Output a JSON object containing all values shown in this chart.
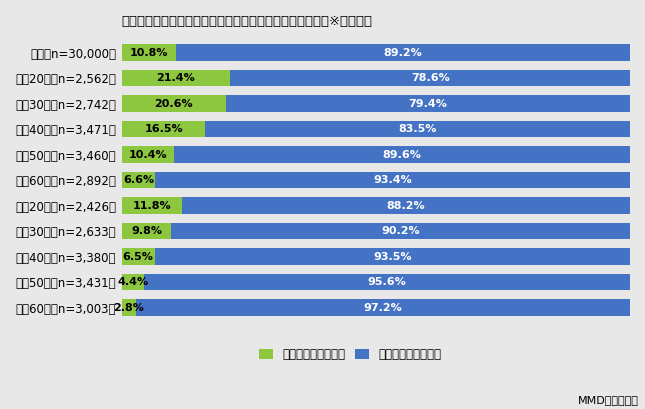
{
  "title": "仮想通貨（暗号資産）取引所サービスの利用経験（単数）※性年代別",
  "categories": [
    "全体（n=30,000）",
    "男性20代（n=2,562）",
    "男性30代（n=2,742）",
    "男性40代（n=3,471）",
    "男性50代（n=3,460）",
    "男性60代（n=2,892）",
    "女性20代（n=2,426）",
    "女性30代（n=2,633）",
    "女性40代（n=3,380）",
    "女性50代（n=3,431）",
    "女性60代（n=3,003）"
  ],
  "used": [
    10.8,
    21.4,
    20.6,
    16.5,
    10.4,
    6.6,
    11.8,
    9.8,
    6.5,
    4.4,
    2.8
  ],
  "not_used": [
    89.2,
    78.6,
    79.4,
    83.5,
    89.6,
    93.4,
    88.2,
    90.2,
    93.5,
    95.6,
    97.2
  ],
  "color_used": "#8DC63F",
  "color_not_used": "#4472C4",
  "background_color": "#E8E8E8",
  "legend_used": "利用したことがある",
  "legend_not_used": "利用したことはない",
  "source_text": "MMD研究所調べ",
  "title_fontsize": 9.5,
  "label_fontsize": 8.5,
  "bar_label_fontsize": 8.0,
  "bar_height": 0.65
}
